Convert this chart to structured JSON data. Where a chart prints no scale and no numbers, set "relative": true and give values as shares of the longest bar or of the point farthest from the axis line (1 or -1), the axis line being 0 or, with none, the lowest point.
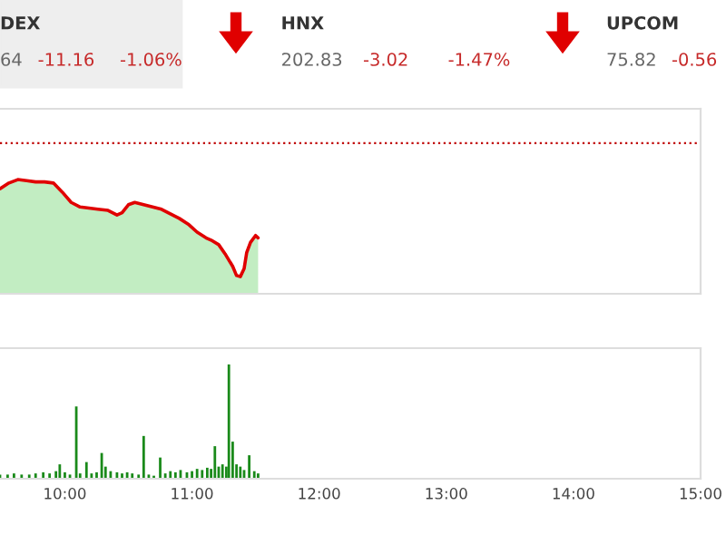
{
  "chart_data": [
    {
      "type": "area",
      "relative": true,
      "annotations": [
        "DEX",
        "64",
        "-11.16",
        "-1.06%",
        "HNX",
        "202.83",
        "-3.02",
        "-1.47%",
        "UPCOM",
        "75.82",
        "-0.56"
      ],
      "x": [
        9.49,
        9.56,
        9.63,
        9.7,
        9.77,
        9.84,
        9.91,
        9.98,
        10.05,
        10.12,
        10.19,
        10.26,
        10.34,
        10.41,
        10.45,
        10.5,
        10.55,
        10.62,
        10.69,
        10.76,
        10.83,
        10.9,
        10.97,
        11.04,
        11.11,
        11.15,
        11.21,
        11.26,
        11.32,
        11.35,
        11.38,
        11.41,
        11.43,
        11.46,
        11.5,
        11.52
      ],
      "series": [
        {
          "type": "area",
          "color": "#c2edc2",
          "values": [
            0.92,
            0.97,
            1.0,
            0.99,
            0.98,
            0.98,
            0.97,
            0.89,
            0.8,
            0.76,
            0.75,
            0.74,
            0.73,
            0.69,
            0.71,
            0.78,
            0.8,
            0.78,
            0.76,
            0.74,
            0.7,
            0.66,
            0.61,
            0.54,
            0.49,
            0.47,
            0.43,
            0.35,
            0.24,
            0.16,
            0.15,
            0.22,
            0.36,
            0.45,
            0.51,
            0.49
          ]
        },
        {
          "type": "line",
          "color": "#e00000",
          "values": [
            0.92,
            0.97,
            1.0,
            0.99,
            0.98,
            0.98,
            0.97,
            0.89,
            0.8,
            0.76,
            0.75,
            0.74,
            0.73,
            0.69,
            0.71,
            0.78,
            0.8,
            0.78,
            0.76,
            0.74,
            0.7,
            0.66,
            0.61,
            0.54,
            0.49,
            0.47,
            0.43,
            0.35,
            0.24,
            0.16,
            0.15,
            0.22,
            0.36,
            0.45,
            0.51,
            0.49
          ]
        }
      ],
      "ref_lines": [
        {
          "axis": "y",
          "value": 1.32,
          "color": "#c00000",
          "line_style": "dotted"
        }
      ],
      "xlim": [
        9.49,
        15.0
      ],
      "tick_labels": false
    },
    {
      "type": "bar",
      "relative": true,
      "x": [
        9.49,
        9.55,
        9.6,
        9.66,
        9.72,
        9.77,
        9.83,
        9.88,
        9.93,
        9.96,
        10.0,
        10.04,
        10.09,
        10.12,
        10.17,
        10.21,
        10.25,
        10.29,
        10.32,
        10.36,
        10.41,
        10.45,
        10.49,
        10.53,
        10.58,
        10.62,
        10.66,
        10.7,
        10.75,
        10.79,
        10.83,
        10.87,
        10.91,
        10.96,
        11.0,
        11.04,
        11.08,
        11.12,
        11.15,
        11.18,
        11.21,
        11.24,
        11.27,
        11.29,
        11.32,
        11.35,
        11.38,
        11.41,
        11.45,
        11.49,
        11.52
      ],
      "series": [
        {
          "color": "#1a8a1a",
          "values": [
            0.03,
            0.03,
            0.04,
            0.03,
            0.03,
            0.04,
            0.05,
            0.04,
            0.06,
            0.12,
            0.05,
            0.03,
            0.63,
            0.04,
            0.14,
            0.04,
            0.05,
            0.22,
            0.1,
            0.06,
            0.05,
            0.04,
            0.05,
            0.04,
            0.03,
            0.37,
            0.03,
            0.02,
            0.18,
            0.04,
            0.06,
            0.05,
            0.07,
            0.05,
            0.06,
            0.08,
            0.07,
            0.09,
            0.08,
            0.28,
            0.1,
            0.12,
            0.1,
            1.0,
            0.32,
            0.12,
            0.1,
            0.07,
            0.2,
            0.06,
            0.04
          ]
        }
      ],
      "xlim": [
        9.49,
        15.0
      ],
      "xticks": [
        {
          "value": 10,
          "label": "10:00"
        },
        {
          "value": 11,
          "label": "11:00"
        },
        {
          "value": 12,
          "label": "12:00"
        },
        {
          "value": 13,
          "label": "13:00"
        },
        {
          "value": 14,
          "label": "14:00"
        },
        {
          "value": 15,
          "label": "15:00"
        }
      ],
      "tick_labels": "x"
    }
  ]
}
